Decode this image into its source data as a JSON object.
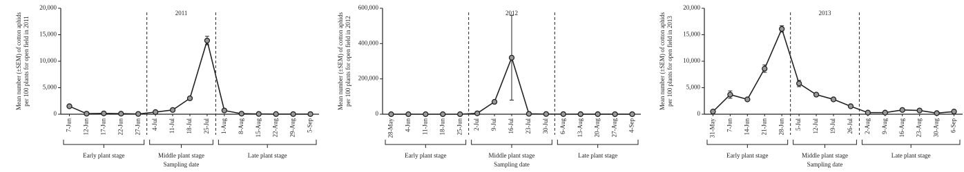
{
  "chart_data": [
    {
      "type": "line",
      "title": "2011",
      "ylabel": [
        "Mean number (±SEM) of cotton aphids",
        "per 100 plants for open field in 2011"
      ],
      "xlabel": "Sampling date",
      "stages": [
        "Early plant stage",
        "Middle plant stage",
        "Late plant stage"
      ],
      "categories": [
        "7-Jun",
        "12-Jun",
        "17-Jun",
        "22-Jun",
        "27-Jun",
        "4-Jul",
        "11-Jul",
        "18-Jul",
        "25-Jul",
        "1-Aug",
        "8-Aug",
        "15-Aug",
        "22-Aug",
        "29-Aug",
        "5-Sep"
      ],
      "values": [
        1500,
        100,
        150,
        100,
        50,
        400,
        800,
        3000,
        13900,
        700,
        100,
        50,
        30,
        20,
        20
      ],
      "errors": [
        150,
        20,
        20,
        20,
        10,
        60,
        100,
        200,
        800,
        100,
        20,
        10,
        5,
        5,
        5
      ],
      "color": "#222222",
      "ylim": [
        0,
        20000
      ],
      "yticks": [
        0,
        {
          "value": 5000,
          "label": "5,000"
        },
        {
          "value": 10000,
          "label": "10,000"
        },
        {
          "value": 15000,
          "label": "15,000"
        },
        {
          "value": 20000,
          "label": "20,000"
        }
      ]
    },
    {
      "type": "line",
      "title": "2012",
      "ylabel": [
        "Mean number (±SEM) of cotton aphids",
        "per 100 plants for open field in 2012"
      ],
      "xlabel": "Sampling date",
      "stages": [
        "Early plant stage",
        "Middle plant stage",
        "Late plant stage"
      ],
      "categories": [
        "28-May",
        "4-Jun",
        "11-Jun",
        "18-Jun",
        "25-Jun",
        "2-Jul",
        "9-Jul",
        "16-Jul",
        "23-Jul",
        "30-Jul",
        "6-Aug",
        "13-Aug",
        "20-Aug",
        "27-Aug",
        "4-Sep"
      ],
      "values": [
        0,
        0,
        0,
        0,
        0,
        5000,
        70000,
        320000,
        2000,
        1000,
        500,
        300,
        200,
        100,
        100
      ],
      "errors": [
        0,
        0,
        0,
        0,
        0,
        1000,
        5000,
        240000,
        500,
        200,
        100,
        50,
        50,
        20,
        20
      ],
      "color": "#222222",
      "ylim": [
        0,
        600000
      ],
      "yticks": [
        0,
        {
          "value": 200000,
          "label": "200,000"
        },
        {
          "value": 400000,
          "label": "400,000"
        },
        {
          "value": 600000,
          "label": "600,000"
        }
      ]
    },
    {
      "type": "line",
      "title": "2013",
      "ylabel": [
        "Mean number (±SEM) of cotton aphids",
        "per 100 plants for open field in 2013"
      ],
      "xlabel": "Sampling date",
      "stages": [
        "Early plant stage",
        "Middle plant stage",
        "Late plant stage"
      ],
      "categories": [
        "31-May",
        "7-Jun",
        "14-Jun",
        "21-Jun",
        "28-Jun",
        "5-Jul",
        "12-Jul",
        "19-Jul",
        "26-Jul",
        "2-Aug",
        "9-Aug",
        "16-Aug",
        "23-Aug",
        "30-Aug",
        "6-Sep"
      ],
      "values": [
        500,
        3700,
        2800,
        8600,
        16100,
        5800,
        3700,
        2800,
        1500,
        300,
        300,
        800,
        700,
        200,
        500
      ],
      "errors": [
        100,
        700,
        150,
        700,
        600,
        600,
        200,
        150,
        100,
        50,
        50,
        100,
        100,
        50,
        100
      ],
      "color": "#222222",
      "ylim": [
        0,
        20000
      ],
      "yticks": [
        0,
        {
          "value": 5000,
          "label": "5,000"
        },
        {
          "value": 10000,
          "label": "10,000"
        },
        {
          "value": 15000,
          "label": "15,000"
        },
        {
          "value": 20000,
          "label": "20,000"
        }
      ]
    }
  ]
}
